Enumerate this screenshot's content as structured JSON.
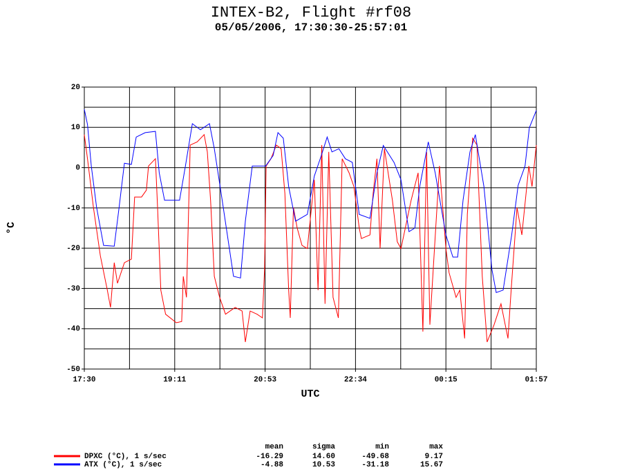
{
  "chart_data": {
    "type": "line",
    "title": "INTEX-B2, Flight #rf08",
    "subtitle": "05/05/2006, 17:30:30-25:57:01",
    "xlabel": "UTC",
    "ylabel": "°C",
    "xlim": [
      17.5,
      25.95
    ],
    "ylim": [
      -50,
      20
    ],
    "xticks": [
      {
        "value": 17.5,
        "label": "17:30"
      },
      {
        "value": 19.19,
        "label": "19:11"
      },
      {
        "value": 20.88,
        "label": "20:53"
      },
      {
        "value": 22.57,
        "label": "22:34"
      },
      {
        "value": 24.26,
        "label": "00:15"
      },
      {
        "value": 25.95,
        "label": "01:57"
      }
    ],
    "xgrid": [
      18.345,
      19.19,
      20.035,
      20.88,
      21.725,
      22.57,
      23.415,
      24.26,
      25.105
    ],
    "yticks": [
      20,
      10,
      0,
      -10,
      -20,
      -30,
      -40,
      -50
    ],
    "ygrid": [
      15,
      10,
      5,
      0,
      -5,
      -10,
      -15,
      -20,
      -25,
      -30,
      -35,
      -40,
      -45
    ],
    "grid": true,
    "series": [
      {
        "name": "DPXC (°C), 1 s/sec",
        "color": "#ff0000",
        "x": [
          17.5,
          17.56,
          17.67,
          17.8,
          17.93,
          17.99,
          18.06,
          18.12,
          18.25,
          18.38,
          18.44,
          18.57,
          18.66,
          18.7,
          18.83,
          18.87,
          18.93,
          19.02,
          19.22,
          19.32,
          19.35,
          19.41,
          19.48,
          19.61,
          19.74,
          19.8,
          19.86,
          19.93,
          20.03,
          20.14,
          20.32,
          20.45,
          20.51,
          20.6,
          20.73,
          20.83,
          20.87,
          20.9,
          20.99,
          21.09,
          21.18,
          21.25,
          21.32,
          21.35,
          21.41,
          21.48,
          21.57,
          21.67,
          21.8,
          21.87,
          21.94,
          22.0,
          22.07,
          22.15,
          22.25,
          22.32,
          22.45,
          22.54,
          22.64,
          22.68,
          22.84,
          22.9,
          22.97,
          23.03,
          23.11,
          23.18,
          23.26,
          23.35,
          23.42,
          23.61,
          23.74,
          23.83,
          23.9,
          23.96,
          24.14,
          24.26,
          24.32,
          24.45,
          24.52,
          24.61,
          24.66,
          24.76,
          24.84,
          24.94,
          25.03,
          25.16,
          25.29,
          25.42,
          25.48,
          25.59,
          25.68,
          25.81,
          25.87,
          25.95
        ],
        "values": [
          8.2,
          2.2,
          -9.9,
          -21.9,
          -30.4,
          -34.7,
          -23.6,
          -28.7,
          -23.6,
          -22.7,
          -7.3,
          -7.3,
          -5.6,
          0.4,
          2.2,
          -9.9,
          -30.4,
          -36.4,
          -38.5,
          -38.2,
          -27,
          -32.2,
          5.6,
          6.4,
          8.2,
          3.9,
          -8.1,
          -27,
          -32.2,
          -36.4,
          -34.7,
          -35.6,
          -43.3,
          -35.6,
          -36.4,
          -37.3,
          -25.3,
          0.4,
          2.2,
          5.6,
          4.7,
          -6.4,
          -30.4,
          -37.3,
          -9.9,
          -15,
          -19.3,
          -20.1,
          -3,
          -30.4,
          5.6,
          -33.8,
          3.9,
          -32.2,
          -37.3,
          2.2,
          -1.3,
          -4.7,
          -15,
          -17.6,
          -16.7,
          -6.4,
          2.2,
          -20.1,
          4.7,
          -1.3,
          -8.1,
          -18.4,
          -20.1,
          -8.1,
          -1.3,
          -40.7,
          3.9,
          -39,
          0.4,
          -20.1,
          -26.1,
          -32.2,
          -30.4,
          -42.4,
          -11.6,
          7.3,
          5.6,
          -27,
          -43.3,
          -39,
          -33.8,
          -42.4,
          -30.4,
          -9.9,
          -16.7,
          0.4,
          -4.7,
          5.6
        ]
      },
      {
        "name": "ATX (°C), 1 s/sec",
        "color": "#0000ff",
        "x": [
          17.5,
          17.56,
          17.63,
          17.73,
          17.86,
          18.06,
          18.15,
          18.25,
          18.38,
          18.47,
          18.64,
          18.83,
          18.9,
          19.0,
          19.28,
          19.39,
          19.52,
          19.67,
          19.84,
          19.93,
          20.06,
          20.29,
          20.42,
          20.51,
          20.64,
          20.89,
          21.03,
          21.12,
          21.22,
          21.32,
          21.45,
          21.67,
          21.8,
          21.93,
          22.04,
          22.13,
          22.26,
          22.38,
          22.51,
          22.64,
          22.84,
          22.97,
          23.09,
          23.29,
          23.42,
          23.57,
          23.68,
          23.77,
          23.93,
          24.06,
          24.26,
          24.39,
          24.48,
          24.58,
          24.71,
          24.81,
          24.97,
          25.12,
          25.2,
          25.33,
          25.49,
          25.61,
          25.74,
          25.82,
          25.95
        ],
        "values": [
          14.5,
          10.7,
          0.4,
          -9.9,
          -19.3,
          -19.5,
          -9.9,
          1.1,
          0.8,
          7.6,
          8.7,
          9.0,
          -1.3,
          -8.1,
          -8.1,
          0.4,
          10.9,
          9.4,
          10.9,
          4.7,
          -6.5,
          -27,
          -27.4,
          -13.3,
          0.4,
          0.4,
          3,
          8.7,
          7.3,
          -4.7,
          -13.3,
          -11.6,
          -2.1,
          3,
          7.6,
          3.9,
          4.7,
          2.2,
          1.3,
          -11.6,
          -12.6,
          -1.3,
          5.5,
          1.3,
          -3,
          -15.9,
          -15,
          -4.7,
          6.4,
          -1.3,
          -16.7,
          -22.2,
          -22.2,
          -8.1,
          3.9,
          8.2,
          -4.7,
          -25.3,
          -31,
          -30.4,
          -16.7,
          -4.4,
          0.4,
          9.9,
          14.2
        ]
      }
    ],
    "stats": {
      "columns": [
        "mean",
        "sigma",
        "min",
        "max"
      ],
      "rows": [
        [
          "-16.29",
          "14.60",
          "-49.68",
          "9.17"
        ],
        [
          "-4.88",
          "10.53",
          "-31.18",
          "15.67"
        ]
      ]
    }
  }
}
